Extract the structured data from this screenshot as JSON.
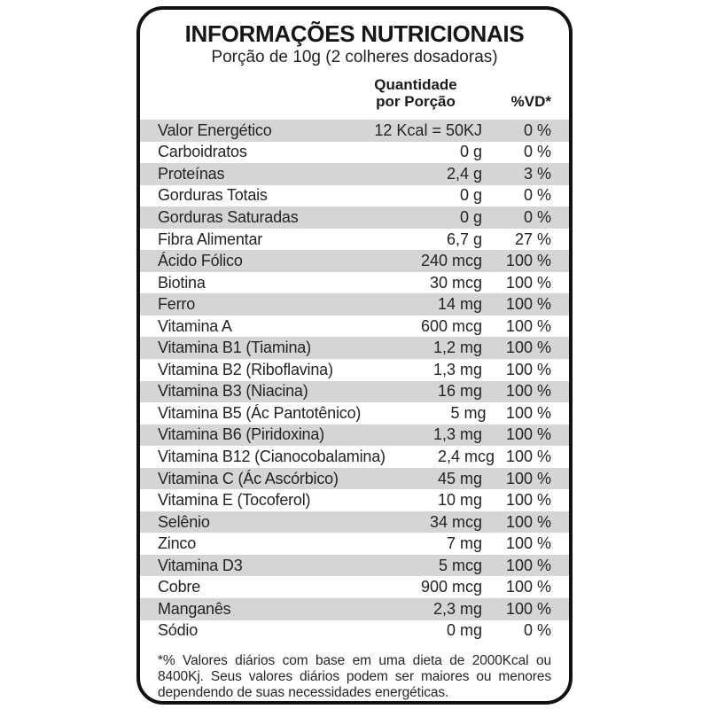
{
  "label": {
    "title": "INFORMAÇÕES NUTRICIONAIS",
    "subtitle": "Porção de 10g (2 colheres dosadoras)",
    "columns": {
      "quantity_header": "Quantidade\npor Porção",
      "vd_header": "%VD*"
    },
    "rows": [
      {
        "name": "Valor Energético",
        "qty": "12 Kcal = 50KJ",
        "vd": "0 %"
      },
      {
        "name": "Carboidratos",
        "qty": "0 g",
        "vd": "0 %"
      },
      {
        "name": "Proteínas",
        "qty": "2,4 g",
        "vd": "3 %"
      },
      {
        "name": "Gorduras Totais",
        "qty": "0 g",
        "vd": "0 %"
      },
      {
        "name": "Gorduras Saturadas",
        "qty": "0 g",
        "vd": "0 %"
      },
      {
        "name": "Fibra Alimentar",
        "qty": "6,7 g",
        "vd": "27 %"
      },
      {
        "name": "Ácido Fólico",
        "qty": "240 mcg",
        "vd": "100 %"
      },
      {
        "name": "Biotina",
        "qty": "30 mcg",
        "vd": "100 %"
      },
      {
        "name": "Ferro",
        "qty": "14 mg",
        "vd": "100 %"
      },
      {
        "name": "Vitamina A",
        "qty": "600 mcg",
        "vd": "100 %"
      },
      {
        "name": "Vitamina B1 (Tiamina)",
        "qty": "1,2 mg",
        "vd": "100 %"
      },
      {
        "name": "Vitamina B2 (Riboflavina)",
        "qty": "1,3 mg",
        "vd": "100 %"
      },
      {
        "name": "Vitamina B3 (Niacina)",
        "qty": "16 mg",
        "vd": "100 %"
      },
      {
        "name": "Vitamina B5 (Ác Pantotênico)",
        "qty": "5 mg",
        "vd": "100 %"
      },
      {
        "name": "Vitamina B6 (Piridoxina)",
        "qty": "1,3 mg",
        "vd": "100 %"
      },
      {
        "name": "Vitamina B12 (Cianocobalamina)",
        "qty": "2,4 mcg",
        "vd": "100 %"
      },
      {
        "name": "Vitamina C (Ác Ascórbico)",
        "qty": "45 mg",
        "vd": "100 %"
      },
      {
        "name": "Vitamina E (Tocoferol)",
        "qty": "10 mg",
        "vd": "100 %"
      },
      {
        "name": "Selênio",
        "qty": "34 mcg",
        "vd": "100 %"
      },
      {
        "name": "Zinco",
        "qty": "7 mg",
        "vd": "100 %"
      },
      {
        "name": "Vitamina D3",
        "qty": "5 mcg",
        "vd": "100 %"
      },
      {
        "name": "Cobre",
        "qty": "900 mcg",
        "vd": "100 %"
      },
      {
        "name": "Manganês",
        "qty": "2,3 mg",
        "vd": "100 %"
      },
      {
        "name": "Sódio",
        "qty": "0 mg",
        "vd": "0 %"
      }
    ],
    "footnote": "*% Valores diários com base em uma dieta de 2000Kcal ou 8400Kj. Seus valores diários podem ser maiores ou menores dependendo de suas necessidades energéticas.",
    "colors": {
      "stripe": "#d5d5d5",
      "text": "#232323",
      "border": "#121212",
      "background": "#ffffff"
    }
  }
}
